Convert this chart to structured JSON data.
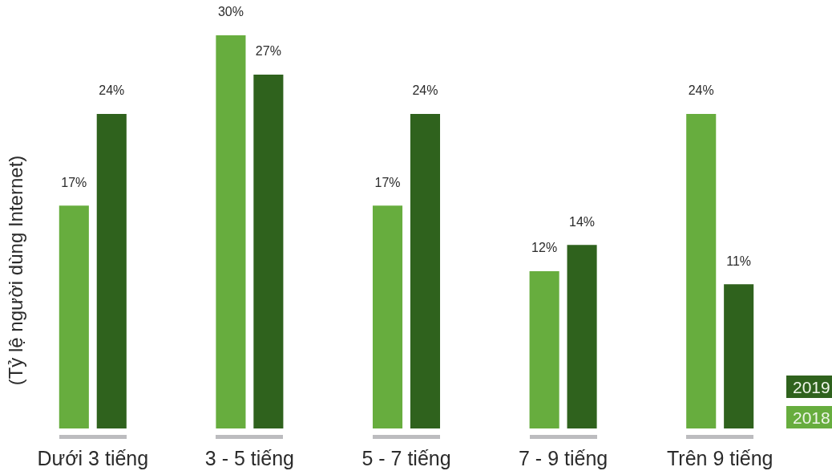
{
  "chart_data": {
    "type": "bar",
    "ylabel": "(Tỷ lệ người dùng Internet)",
    "categories": [
      "Dưới 3 tiếng",
      "3 - 5 tiếng",
      "5 - 7 tiếng",
      "7 - 9 tiếng",
      "Trên 9 tiếng"
    ],
    "series": [
      {
        "name": "2018",
        "color": "#67ad3e",
        "values": [
          17,
          30,
          17,
          12,
          24
        ],
        "value_labels": [
          "17%",
          "30%",
          "17%",
          "12%",
          "24%"
        ]
      },
      {
        "name": "2019",
        "color": "#2f621d",
        "values": [
          24,
          27,
          24,
          14,
          11
        ],
        "value_labels": [
          "24%",
          "27%",
          "24%",
          "14%",
          "11%"
        ]
      }
    ],
    "legend": "bottom right",
    "tick_labels": "x"
  }
}
